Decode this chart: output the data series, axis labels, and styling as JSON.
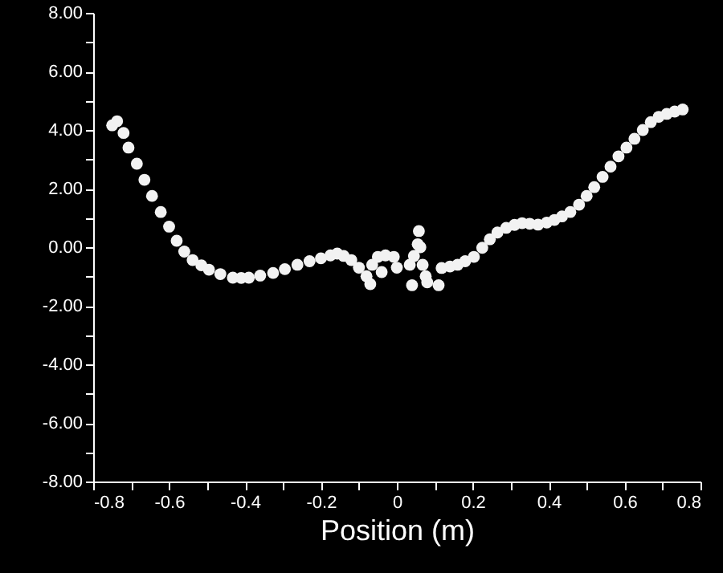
{
  "chart_data": {
    "type": "scatter",
    "xlabel": "Position (m)",
    "x": [
      -0.75,
      -0.737,
      -0.72,
      -0.707,
      -0.685,
      -0.665,
      -0.645,
      -0.622,
      -0.6,
      -0.58,
      -0.56,
      -0.538,
      -0.515,
      -0.495,
      -0.465,
      -0.432,
      -0.41,
      -0.39,
      -0.36,
      -0.326,
      -0.295,
      -0.262,
      -0.23,
      -0.2,
      -0.175,
      -0.157,
      -0.14,
      -0.12,
      -0.1,
      -0.08,
      -0.065,
      -0.05,
      -0.03,
      -0.008,
      0.034,
      0.045,
      0.055,
      0.058,
      0.062,
      0.068,
      0.076,
      0.118,
      0.14,
      0.16,
      0.18,
      0.203,
      0.225,
      0.245,
      0.265,
      0.288,
      0.31,
      0.33,
      0.35,
      0.372,
      0.395,
      0.415,
      0.435,
      0.457,
      0.48,
      0.5,
      0.52,
      0.542,
      0.563,
      0.584,
      0.605,
      0.626,
      0.648,
      0.669,
      0.69,
      0.711,
      0.732,
      0.753,
      -0.07,
      -0.04,
      0.0,
      0.04,
      0.08,
      0.11
    ],
    "values": [
      4.16,
      4.3,
      3.9,
      3.4,
      2.85,
      2.3,
      1.75,
      1.2,
      0.7,
      0.22,
      -0.15,
      -0.44,
      -0.62,
      -0.77,
      -0.92,
      -1.04,
      -1.05,
      -1.04,
      -0.97,
      -0.88,
      -0.75,
      -0.6,
      -0.48,
      -0.38,
      -0.28,
      -0.22,
      -0.3,
      -0.44,
      -0.7,
      -0.99,
      -0.6,
      -0.33,
      -0.28,
      -0.33,
      -0.6,
      -0.3,
      0.1,
      0.55,
      0.0,
      -0.6,
      -0.99,
      -0.71,
      -0.66,
      -0.6,
      -0.48,
      -0.33,
      -0.02,
      0.27,
      0.5,
      0.66,
      0.76,
      0.82,
      0.8,
      0.77,
      0.84,
      0.93,
      1.05,
      1.2,
      1.45,
      1.75,
      2.05,
      2.4,
      2.75,
      3.1,
      3.4,
      3.7,
      4.0,
      4.27,
      4.45,
      4.55,
      4.63,
      4.7,
      -1.26,
      -0.85,
      -0.7,
      -1.3,
      -1.2,
      -1.3
    ],
    "color": "#f2f2f2",
    "marker": "circle",
    "grid": false,
    "xlim": [
      -0.8,
      0.8
    ],
    "xticks": [
      -0.8,
      {
        "value": -0.7,
        "label": null
      },
      -0.6,
      {
        "value": -0.5,
        "label": null
      },
      -0.4,
      {
        "value": -0.3,
        "label": null
      },
      -0.2,
      {
        "value": -0.1,
        "label": null
      },
      0,
      {
        "value": 0.1,
        "label": null
      },
      0.2,
      {
        "value": 0.3,
        "label": null
      },
      0.4,
      {
        "value": 0.5,
        "label": null
      },
      0.6,
      {
        "value": 0.7,
        "label": null
      },
      0.8
    ],
    "ylim": [
      -8,
      8
    ],
    "yticks": [
      {
        "value": -8,
        "label": "-8.00"
      },
      {
        "value": -7,
        "label": null
      },
      {
        "value": -6,
        "label": "-6.00"
      },
      {
        "value": -5,
        "label": null
      },
      {
        "value": -4,
        "label": "-4.00"
      },
      {
        "value": -3,
        "label": null
      },
      {
        "value": -2,
        "label": "-2.00"
      },
      {
        "value": -1,
        "label": null
      },
      {
        "value": 0,
        "label": "0.00"
      },
      {
        "value": 1,
        "label": null
      },
      {
        "value": 2,
        "label": "2.00"
      },
      {
        "value": 3,
        "label": null
      },
      {
        "value": 4,
        "label": "4.00"
      },
      {
        "value": 5,
        "label": null
      },
      {
        "value": 6,
        "label": "6.00"
      },
      {
        "value": 7,
        "label": null
      },
      {
        "value": 8,
        "label": "8.00"
      }
    ]
  }
}
